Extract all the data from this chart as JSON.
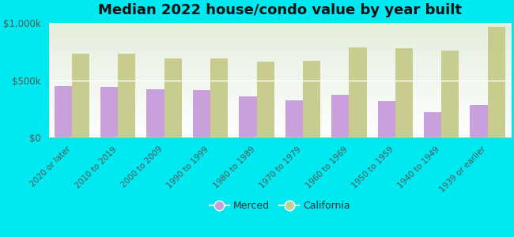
{
  "title": "Median 2022 house/condo value by year built",
  "categories": [
    "2020 or later",
    "2010 to 2019",
    "2000 to 2009",
    "1990 to 1999",
    "1980 to 1989",
    "1970 to 1979",
    "1960 to 1969",
    "1950 to 1959",
    "1940 to 1949",
    "1939 or earlier"
  ],
  "merced": [
    450000,
    445000,
    420000,
    415000,
    360000,
    325000,
    370000,
    320000,
    220000,
    285000
  ],
  "california": [
    730000,
    730000,
    690000,
    690000,
    660000,
    670000,
    790000,
    780000,
    760000,
    970000
  ],
  "merced_color": "#c9a0dc",
  "california_color": "#c8cc8e",
  "background_color": "#00e8f0",
  "plot_bg_top": "#ffffff",
  "plot_bg_bottom": "#e8f0e0",
  "ylim": [
    0,
    1000000
  ],
  "yticks": [
    0,
    500000,
    1000000
  ],
  "ytick_labels": [
    "$0",
    "$500k",
    "$1,000k"
  ],
  "bar_width": 0.38,
  "title_fontsize": 13,
  "legend_labels": [
    "Merced",
    "California"
  ]
}
